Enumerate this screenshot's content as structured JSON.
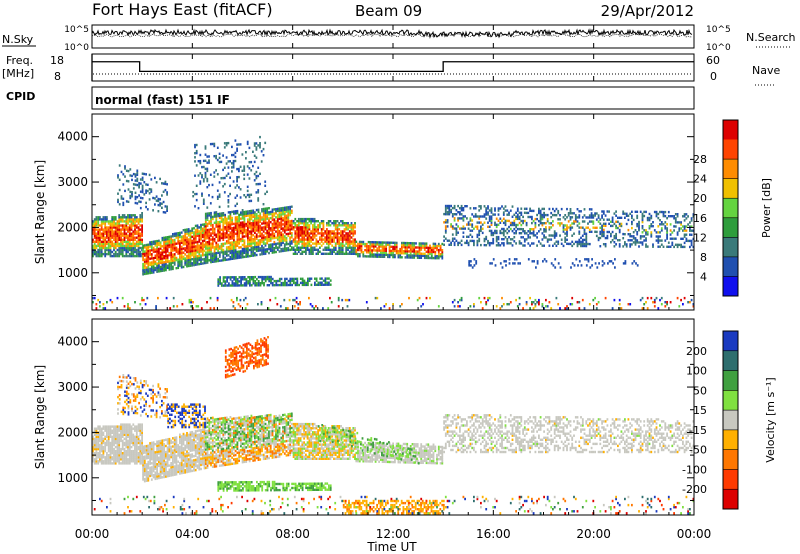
{
  "header": {
    "station": "Fort Hays East (fitACF)",
    "beam": "Beam 09",
    "date": "29/Apr/2012"
  },
  "top_panels": {
    "nsky_label": "N.Sky",
    "nsky_ticks": [
      "10^5",
      "10^0"
    ],
    "nsearch_label": "N.Search",
    "nsearch_ticks": [
      "10^5",
      "10^0"
    ],
    "freq_label": "Freq.",
    "freq_unit": "[MHz]",
    "freq_ticks": [
      "18",
      "8"
    ],
    "nave_label": "Nave",
    "nave_ticks": [
      "60",
      "0"
    ],
    "cpid_label": "CPID",
    "cpid_value": "normal (fast) 151 IF"
  },
  "chart_data": {
    "type": "heatmap",
    "x_ticks": [
      "00:00",
      "04:00",
      "08:00",
      "12:00",
      "16:00",
      "20:00",
      "00:00"
    ],
    "xlabel": "Time UT",
    "xlim_hours": [
      0,
      24
    ],
    "frequency_mhz": [
      {
        "start": 0,
        "end": 1.9,
        "value": 15
      },
      {
        "start": 1.9,
        "end": 14,
        "value": 10
      },
      {
        "start": 14,
        "end": 24,
        "value": 15
      }
    ],
    "panels": [
      {
        "name": "power",
        "ylabel": "Slant Range [km]",
        "y_ticks": [
          "1000",
          "2000",
          "3000",
          "4000"
        ],
        "ylim_km": [
          180,
          4500
        ],
        "colorbar_label": "Power [dB]",
        "colorbar_ticks": [
          "4",
          "8",
          "12",
          "16",
          "20",
          "24",
          "28"
        ],
        "colorbar_colors": [
          "#1010ee",
          "#2050b0",
          "#3a7a7a",
          "#2e9d3c",
          "#64d440",
          "#f0c000",
          "#ff8c00",
          "#ff4400",
          "#dd0000"
        ]
      },
      {
        "name": "velocity",
        "ylabel": "Slant Range [km]",
        "y_ticks": [
          "1000",
          "2000",
          "3000",
          "4000"
        ],
        "ylim_km": [
          180,
          4500
        ],
        "colorbar_label": "Velocity [m s⁻¹]",
        "colorbar_ticks": [
          "200",
          "100",
          "50",
          "15",
          "-15",
          "-50",
          "-100",
          "-200"
        ],
        "colorbar_colors": [
          "#1a3ac0",
          "#2e6e6e",
          "#40a040",
          "#80e040",
          "#c8c8c0",
          "#ffb000",
          "#ff7700",
          "#ff3a00",
          "#dd0000"
        ]
      }
    ]
  }
}
